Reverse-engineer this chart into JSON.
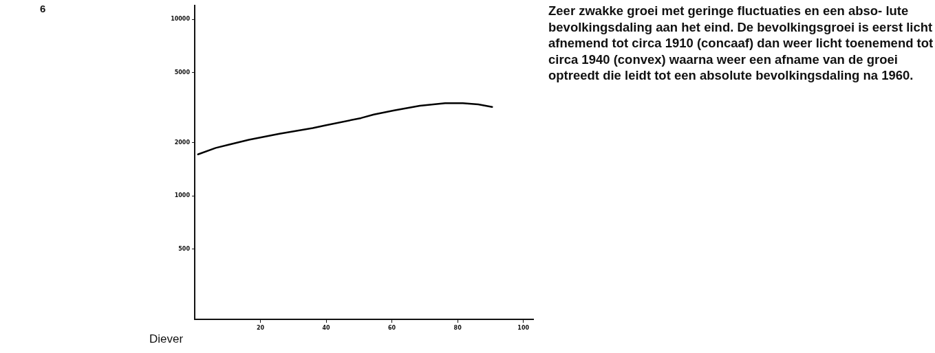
{
  "chart_data": {
    "type": "line",
    "title": "Diever",
    "annotations": [
      "6",
      "Zeer zwakke groei met geringe fluctuaties en een abso- lute bevolkingsdaling aan het eind. De bevolkingsgroei is eerst licht afnemend tot circa 1910 (concaaf) dan weer licht toenemend tot circa 1940 (convex) waarna weer een afname van de groei optreedt die leidt tot een absolute bevolkingsdaling na 1960."
    ],
    "x": [
      1,
      6.4,
      10.3,
      16.5,
      25.8,
      35.9,
      39.8,
      50.6,
      54.5,
      60.7,
      68.5,
      76.2,
      81.6,
      86.3,
      90.5
    ],
    "series": [
      {
        "color": "#000000",
        "values": [
          1720,
          1870,
          1950,
          2080,
          2250,
          2420,
          2510,
          2760,
          2890,
          3050,
          3240,
          3350,
          3350,
          3300,
          3190
        ]
      }
    ],
    "log": "y",
    "grid": false,
    "legend": false,
    "marker": "none",
    "line_style": "solid",
    "xlim": [
      0,
      103
    ],
    "xticks": [
      20,
      40,
      60,
      80,
      100
    ],
    "ylim": [
      200,
      12000
    ],
    "yticks": [
      500,
      1000,
      2000,
      5000,
      10000
    ]
  }
}
